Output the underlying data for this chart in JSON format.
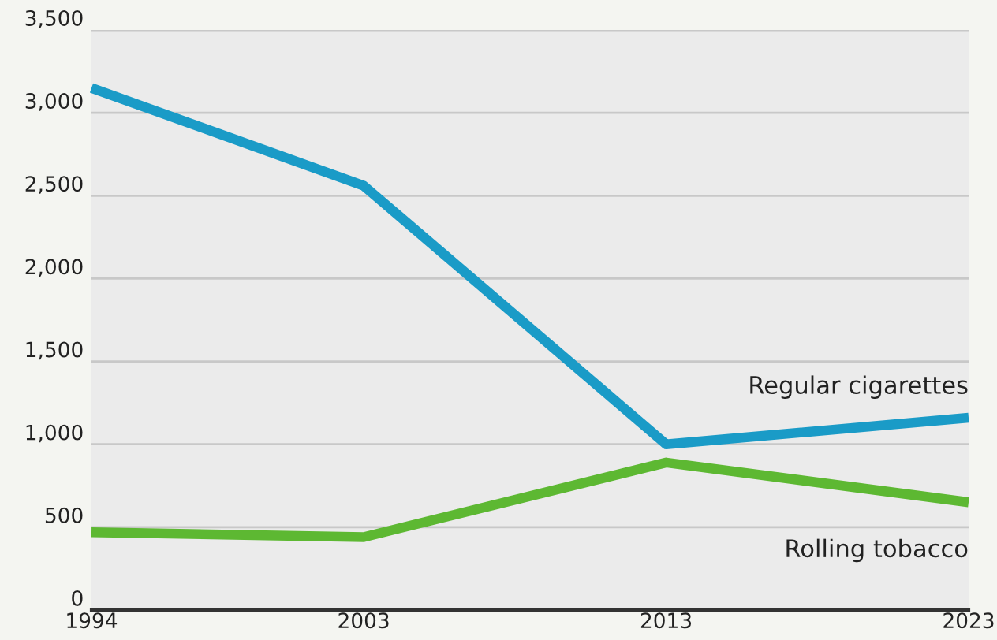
{
  "chart_data": {
    "type": "line",
    "x": [
      1994,
      2003,
      2013,
      2023
    ],
    "series": [
      {
        "name": "Regular cigarettes",
        "color": "#1a9bc7",
        "values": [
          3150,
          2560,
          1000,
          1160
        ]
      },
      {
        "name": "Rolling tobacco",
        "color": "#5db832",
        "values": [
          470,
          440,
          890,
          650
        ]
      }
    ],
    "xlim": [
      1994,
      2023
    ],
    "xticks": [
      1994,
      2003,
      2013,
      2023
    ],
    "ylim": [
      0,
      3500
    ],
    "yticks": [
      {
        "value": 0,
        "label": "0"
      },
      {
        "value": 500,
        "label": "500"
      },
      {
        "value": 1000,
        "label": "1,000"
      },
      {
        "value": 1500,
        "label": "1,500"
      },
      {
        "value": 2000,
        "label": "2,000"
      },
      {
        "value": 2500,
        "label": "2,500"
      },
      {
        "value": 3000,
        "label": "3,000"
      },
      {
        "value": 3500,
        "label": "3,500"
      }
    ],
    "grid": "y",
    "legend": false,
    "marker": "none",
    "line_style": "solid"
  }
}
